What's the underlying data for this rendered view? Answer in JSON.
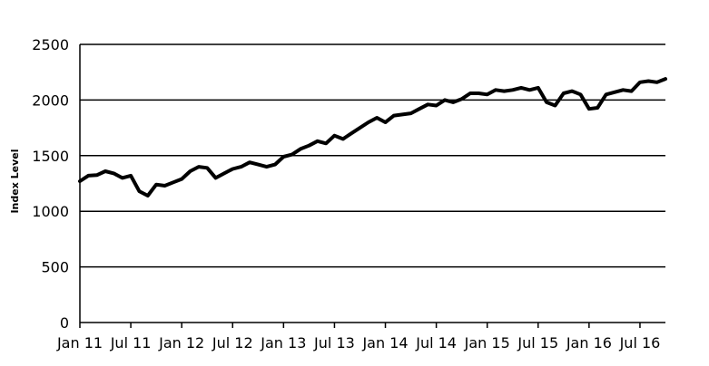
{
  "chart_data": {
    "type": "line",
    "title": "",
    "xlabel": "",
    "ylabel": "Index Level",
    "ylim": [
      0,
      2500
    ],
    "yticks": [
      0,
      500,
      1000,
      1500,
      2000,
      2500
    ],
    "xlim": [
      "2011-01",
      "2016-10"
    ],
    "xticks": [
      {
        "date": "2011-01",
        "label": "Jan 11"
      },
      {
        "date": "2011-07",
        "label": "Jul 11"
      },
      {
        "date": "2012-01",
        "label": "Jan 12"
      },
      {
        "date": "2012-07",
        "label": "Jul 12"
      },
      {
        "date": "2013-01",
        "label": "Jan 13"
      },
      {
        "date": "2013-07",
        "label": "Jul 13"
      },
      {
        "date": "2014-01",
        "label": "Jan 14"
      },
      {
        "date": "2014-07",
        "label": "Jul 14"
      },
      {
        "date": "2015-01",
        "label": "Jan 15"
      },
      {
        "date": "2015-07",
        "label": "Jul 15"
      },
      {
        "date": "2016-01",
        "label": "Jan 16"
      },
      {
        "date": "2016-07",
        "label": "Jul 16"
      }
    ],
    "grid": "horizontal",
    "legend": "none",
    "line_color": "#000000",
    "series": [
      {
        "x": [
          "2011-01",
          "2011-02",
          "2011-03",
          "2011-04",
          "2011-05",
          "2011-06",
          "2011-07",
          "2011-08",
          "2011-09",
          "2011-10",
          "2011-11",
          "2011-12",
          "2012-01",
          "2012-02",
          "2012-03",
          "2012-04",
          "2012-05",
          "2012-06",
          "2012-07",
          "2012-08",
          "2012-09",
          "2012-10",
          "2012-11",
          "2012-12",
          "2013-01",
          "2013-02",
          "2013-03",
          "2013-04",
          "2013-05",
          "2013-06",
          "2013-07",
          "2013-08",
          "2013-09",
          "2013-10",
          "2013-11",
          "2013-12",
          "2014-01",
          "2014-02",
          "2014-03",
          "2014-04",
          "2014-05",
          "2014-06",
          "2014-07",
          "2014-08",
          "2014-09",
          "2014-10",
          "2014-11",
          "2014-12",
          "2015-01",
          "2015-02",
          "2015-03",
          "2015-04",
          "2015-05",
          "2015-06",
          "2015-07",
          "2015-08",
          "2015-09",
          "2015-10",
          "2015-11",
          "2015-12",
          "2016-01",
          "2016-02",
          "2016-03",
          "2016-04",
          "2016-05",
          "2016-06",
          "2016-07",
          "2016-08",
          "2016-09",
          "2016-10"
        ],
        "values": [
          1270,
          1320,
          1325,
          1360,
          1340,
          1300,
          1320,
          1180,
          1140,
          1240,
          1230,
          1260,
          1290,
          1360,
          1400,
          1390,
          1300,
          1340,
          1380,
          1400,
          1440,
          1420,
          1400,
          1420,
          1490,
          1510,
          1560,
          1590,
          1630,
          1610,
          1680,
          1650,
          1700,
          1750,
          1800,
          1840,
          1800,
          1860,
          1870,
          1880,
          1920,
          1960,
          1950,
          2000,
          1980,
          2010,
          2060,
          2060,
          2050,
          2090,
          2080,
          2090,
          2110,
          2090,
          2110,
          1980,
          1950,
          2060,
          2080,
          2050,
          1920,
          1930,
          2050,
          2070,
          2090,
          2080,
          2160,
          2170,
          2160,
          2190
        ]
      }
    ]
  }
}
